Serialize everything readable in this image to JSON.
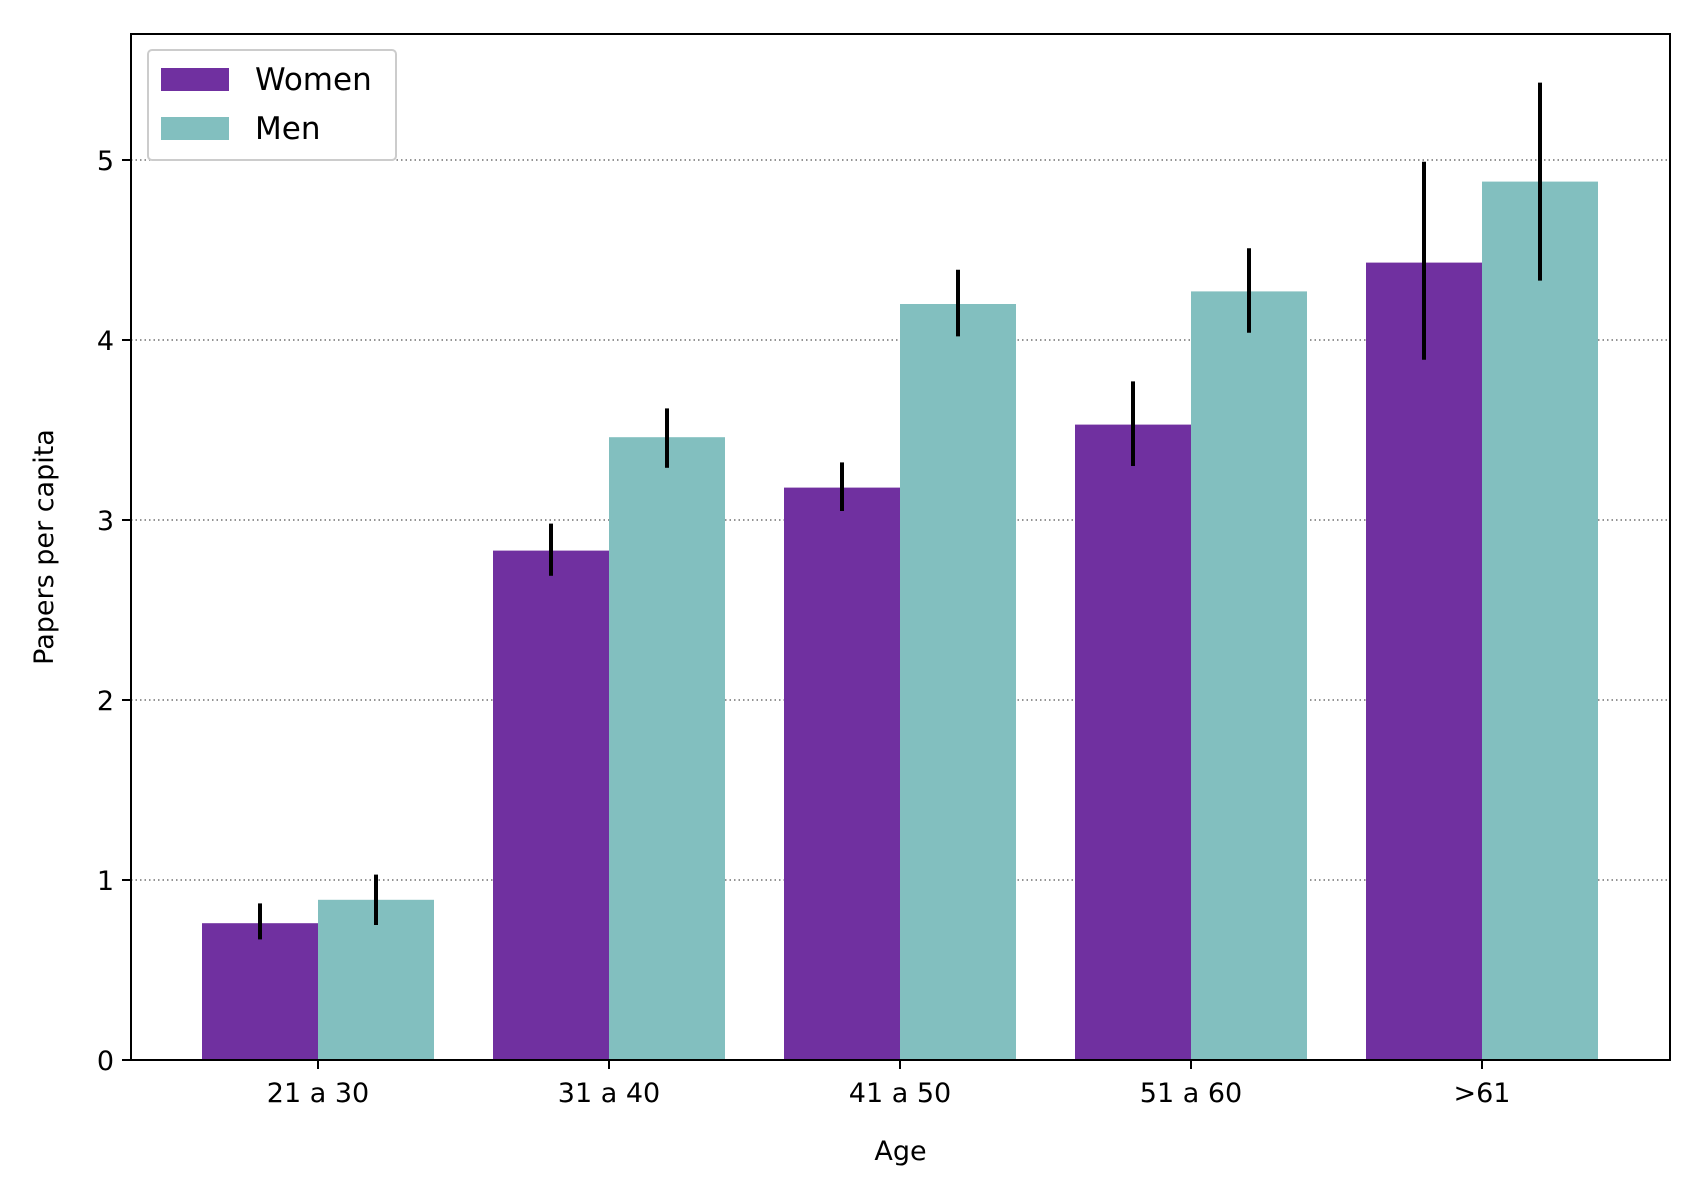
{
  "chart_data": {
    "type": "bar",
    "xlabel": "Age",
    "ylabel": "Papers per capita",
    "categories": [
      "21 a 30",
      "31 a 40",
      "41 a 50",
      "51 a 60",
      ">61"
    ],
    "ylim": [
      0,
      5.7
    ],
    "yticks": [
      0,
      1,
      2,
      3,
      4,
      5
    ],
    "grid": "y-dotted",
    "legend_position": "top-left",
    "series": [
      {
        "name": "Women",
        "color": "#7030A0",
        "values": [
          0.76,
          2.83,
          3.18,
          3.53,
          4.43
        ],
        "err_low": [
          0.67,
          2.69,
          3.05,
          3.3,
          3.89
        ],
        "err_high": [
          0.87,
          2.98,
          3.32,
          3.77,
          4.99
        ]
      },
      {
        "name": "Men",
        "color": "#82BFBF",
        "values": [
          0.89,
          3.46,
          4.2,
          4.27,
          4.88
        ],
        "err_low": [
          0.75,
          3.29,
          4.02,
          4.04,
          4.33
        ],
        "err_high": [
          1.03,
          3.62,
          4.39,
          4.51,
          5.43
        ]
      }
    ]
  }
}
